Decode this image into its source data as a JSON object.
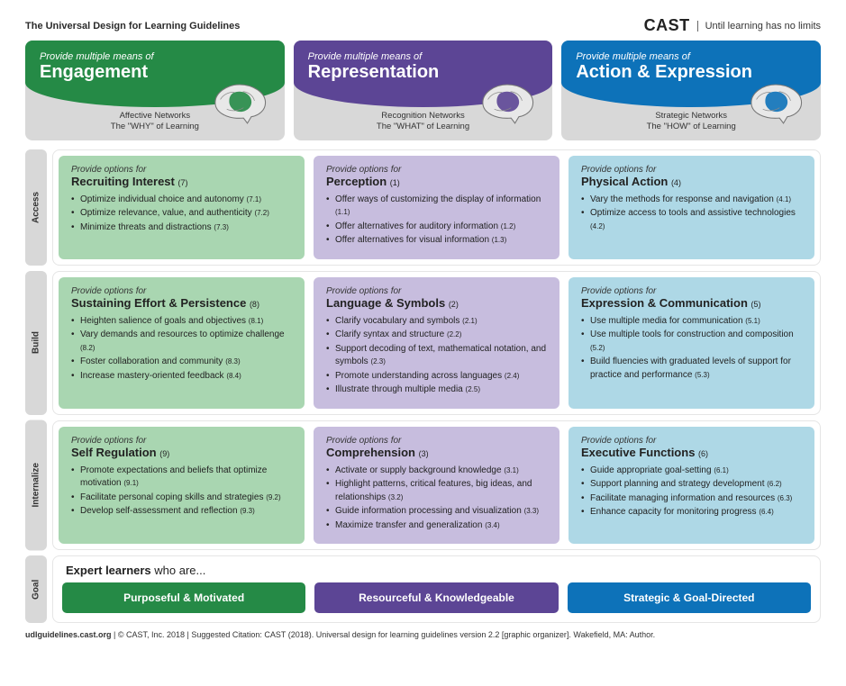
{
  "page_title": "The Universal Design for Learning Guidelines",
  "brand_name": "CAST",
  "brand_tagline": "Until learning has no limits",
  "colors": {
    "green_header": "#258a46",
    "green_cell": "#a9d6b1",
    "green_pill": "#258a46",
    "purple_header": "#5c4595",
    "purple_cell": "#c7bdde",
    "purple_pill": "#5c4595",
    "blue_header": "#0d72b9",
    "blue_cell": "#aed8e6",
    "blue_pill": "#0d72b9",
    "row_label_bg": "#d8d8d8",
    "header_bottom_bg": "#d8d8d8"
  },
  "columns": [
    {
      "kicker": "Provide multiple means of",
      "title": "Engagement",
      "network_line1": "Affective Networks",
      "network_line2": "The \"WHY\" of Learning",
      "brain_fill": "#258a46",
      "header_color": "#258a46",
      "cell_color": "#a9d6b1",
      "pill_color": "#258a46",
      "pill_text": "Purposeful & Motivated"
    },
    {
      "kicker": "Provide multiple means of",
      "title": "Representation",
      "network_line1": "Recognition Networks",
      "network_line2": "The \"WHAT\" of Learning",
      "brain_fill": "#5c4595",
      "header_color": "#5c4595",
      "cell_color": "#c7bdde",
      "pill_color": "#5c4595",
      "pill_text": "Resourceful & Knowledgeable"
    },
    {
      "kicker": "Provide multiple means of",
      "title": "Action & Expression",
      "network_line1": "Strategic Networks",
      "network_line2": "The \"HOW\" of Learning",
      "brain_fill": "#0d72b9",
      "header_color": "#0d72b9",
      "cell_color": "#aed8e6",
      "pill_color": "#0d72b9",
      "pill_text": "Strategic & Goal-Directed"
    }
  ],
  "rows": [
    {
      "label": "Access",
      "cells": [
        {
          "kicker": "Provide options for",
          "title": "Recruiting Interest",
          "num": "(7)",
          "items": [
            {
              "text": "Optimize individual choice and autonomy",
              "num": "(7.1)"
            },
            {
              "text": "Optimize relevance, value, and authenticity",
              "num": "(7.2)"
            },
            {
              "text": "Minimize threats and distractions",
              "num": "(7.3)"
            }
          ]
        },
        {
          "kicker": "Provide options for",
          "title": "Perception",
          "num": "(1)",
          "items": [
            {
              "text": "Offer ways of customizing the display of information",
              "num": "(1.1)"
            },
            {
              "text": "Offer alternatives for auditory information",
              "num": "(1.2)"
            },
            {
              "text": "Offer alternatives for visual information",
              "num": "(1.3)"
            }
          ]
        },
        {
          "kicker": "Provide options for",
          "title": "Physical Action",
          "num": "(4)",
          "items": [
            {
              "text": "Vary the methods for response and navigation",
              "num": "(4.1)"
            },
            {
              "text": "Optimize access to tools and assistive technologies",
              "num": "(4.2)"
            }
          ]
        }
      ]
    },
    {
      "label": "Build",
      "cells": [
        {
          "kicker": "Provide options for",
          "title": "Sustaining Effort & Persistence",
          "num": "(8)",
          "items": [
            {
              "text": "Heighten salience of goals and objectives",
              "num": "(8.1)"
            },
            {
              "text": "Vary demands and resources to optimize challenge",
              "num": "(8.2)"
            },
            {
              "text": "Foster collaboration and community",
              "num": "(8.3)"
            },
            {
              "text": "Increase mastery-oriented feedback",
              "num": "(8.4)"
            }
          ]
        },
        {
          "kicker": "Provide options for",
          "title": "Language & Symbols",
          "num": "(2)",
          "items": [
            {
              "text": "Clarify vocabulary and symbols",
              "num": "(2.1)"
            },
            {
              "text": "Clarify syntax and structure",
              "num": "(2.2)"
            },
            {
              "text": "Support decoding of text, mathematical notation, and symbols",
              "num": "(2.3)"
            },
            {
              "text": "Promote understanding across languages",
              "num": "(2.4)"
            },
            {
              "text": "Illustrate through multiple media",
              "num": "(2.5)"
            }
          ]
        },
        {
          "kicker": "Provide options for",
          "title": "Expression & Communication",
          "num": "(5)",
          "items": [
            {
              "text": "Use multiple media for communication",
              "num": "(5.1)"
            },
            {
              "text": "Use multiple tools for construction and composition",
              "num": "(5.2)"
            },
            {
              "text": "Build fluencies with graduated levels of support for practice and performance",
              "num": "(5.3)"
            }
          ]
        }
      ]
    },
    {
      "label": "Internalize",
      "cells": [
        {
          "kicker": "Provide options for",
          "title": "Self Regulation",
          "num": "(9)",
          "items": [
            {
              "text": "Promote expectations and beliefs that optimize motivation",
              "num": "(9.1)"
            },
            {
              "text": "Facilitate personal coping skills and strategies",
              "num": "(9.2)"
            },
            {
              "text": "Develop self-assessment and reflection",
              "num": "(9.3)"
            }
          ]
        },
        {
          "kicker": "Provide options for",
          "title": "Comprehension",
          "num": "(3)",
          "items": [
            {
              "text": "Activate or supply background knowledge",
              "num": "(3.1)"
            },
            {
              "text": "Highlight patterns, critical features, big ideas, and relationships",
              "num": "(3.2)"
            },
            {
              "text": "Guide information processing and visualization",
              "num": "(3.3)"
            },
            {
              "text": "Maximize transfer and generalization",
              "num": "(3.4)"
            }
          ]
        },
        {
          "kicker": "Provide options for",
          "title": "Executive Functions",
          "num": "(6)",
          "items": [
            {
              "text": "Guide appropriate goal-setting",
              "num": "(6.1)"
            },
            {
              "text": "Support planning and strategy development",
              "num": "(6.2)"
            },
            {
              "text": "Facilitate managing information and resources",
              "num": "(6.3)"
            },
            {
              "text": "Enhance capacity for monitoring progress",
              "num": "(6.4)"
            }
          ]
        }
      ]
    }
  ],
  "goal": {
    "label": "Goal",
    "heading_strong": "Expert learners",
    "heading_rest": " who are..."
  },
  "footer_site": "udlguidelines.cast.org",
  "footer_rest": " | © CAST, Inc. 2018  |  Suggested Citation: CAST (2018). Universal design for learning guidelines version 2.2 [graphic organizer]. Wakefield, MA: Author."
}
